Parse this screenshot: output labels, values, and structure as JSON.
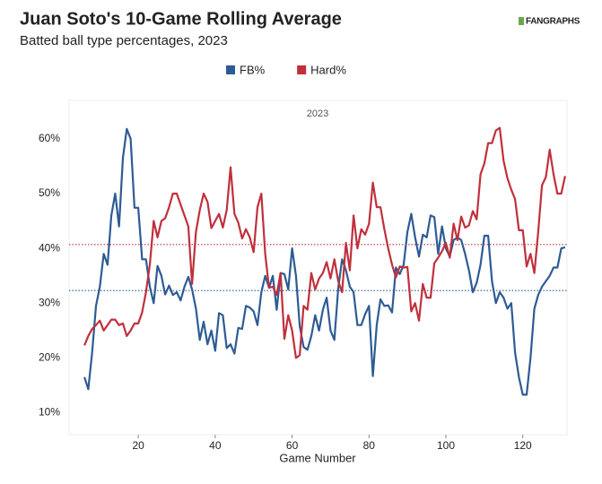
{
  "chart_data": {
    "type": "line",
    "title": "Juan Soto's 10-Game Rolling Average",
    "subtitle": "Batted ball type percentages, 2023",
    "brand": "FANGRAPHS",
    "panel_label": "2023",
    "xlabel": "Game Number",
    "x": [
      6,
      7,
      8,
      9,
      10,
      11,
      12,
      13,
      14,
      15,
      16,
      17,
      18,
      19,
      20,
      21,
      22,
      23,
      24,
      25,
      26,
      27,
      28,
      29,
      30,
      31,
      32,
      33,
      34,
      35,
      36,
      37,
      38,
      39,
      40,
      41,
      42,
      43,
      44,
      45,
      46,
      47,
      48,
      49,
      50,
      51,
      52,
      53,
      54,
      55,
      56,
      57,
      58,
      59,
      60,
      61,
      62,
      63,
      64,
      65,
      66,
      67,
      68,
      69,
      70,
      71,
      72,
      73,
      74,
      75,
      76,
      77,
      78,
      79,
      80,
      81,
      82,
      83,
      84,
      85,
      86,
      87,
      88,
      89,
      90,
      91,
      92,
      93,
      94,
      95,
      96,
      97,
      98,
      99,
      100,
      101,
      102,
      103,
      104,
      105,
      106,
      107,
      108,
      109,
      110,
      111,
      112,
      113,
      114,
      115,
      116,
      117,
      118,
      119,
      120,
      121,
      122,
      123,
      124,
      125,
      126,
      127,
      128,
      129,
      130,
      131
    ],
    "series": [
      {
        "name": "FB%",
        "color": "#2e5b94",
        "values": [
          16.5,
          14.3,
          21,
          29.5,
          33,
          39,
          37,
          46,
          50,
          44,
          56.5,
          61.8,
          60,
          47.4,
          47.4,
          38,
          38,
          33,
          30,
          36.8,
          35,
          31.6,
          33.2,
          31.5,
          32,
          30.5,
          33,
          34.8,
          32.5,
          29,
          23.3,
          26.6,
          22.5,
          25,
          21.3,
          28.2,
          27.8,
          21.8,
          22.5,
          20.8,
          25.5,
          25.3,
          29.5,
          29.2,
          28.5,
          26,
          32,
          35,
          32.8,
          35,
          28.8,
          35.5,
          35.3,
          32.5,
          40,
          35,
          25.8,
          22,
          21.5,
          24,
          27.8,
          25,
          28.8,
          31,
          25,
          23.3,
          32.7,
          38,
          36,
          33,
          32,
          26,
          26,
          28,
          29.5,
          16.7,
          26,
          30.7,
          29.5,
          29.6,
          28.3,
          36.5,
          35.3,
          37,
          43,
          46.3,
          42,
          38.5,
          42.5,
          42,
          46,
          45.7,
          39,
          44,
          40,
          38.5,
          41.5,
          42,
          41.5,
          39,
          36,
          32,
          33.7,
          37,
          42.3,
          42.3,
          34,
          30,
          32,
          31,
          29,
          30,
          21,
          16.5,
          13.3,
          13.3,
          20,
          29,
          31.5,
          33,
          34,
          35,
          36.5,
          36.5,
          40,
          40.2
        ]
      },
      {
        "name": "Hard%",
        "color": "#c0303c",
        "values": [
          22.3,
          24,
          25.3,
          26,
          26.8,
          25,
          26,
          27,
          27,
          26,
          26.3,
          24,
          25,
          26.3,
          26.3,
          28.3,
          32,
          37,
          45,
          42,
          45,
          45.5,
          47.5,
          50,
          50,
          48,
          46,
          44,
          33.5,
          43,
          47,
          50,
          48.5,
          43.7,
          45,
          46.3,
          43.8,
          47,
          54.8,
          46.3,
          44.7,
          41.8,
          43.5,
          42,
          39.3,
          47.5,
          50,
          39,
          32.8,
          33,
          31.5,
          35.5,
          23.5,
          27.8,
          25,
          20,
          20.5,
          29.5,
          28.8,
          35.5,
          32.5,
          34.5,
          35.5,
          37.5,
          34.5,
          38,
          34,
          32,
          41,
          36,
          46,
          40,
          43.5,
          42.5,
          44.5,
          52,
          47.5,
          47.5,
          43.5,
          40,
          37,
          34.7,
          36.7,
          36.5,
          36.6,
          28.5,
          30,
          26.8,
          33.5,
          31,
          31,
          37.3,
          38.3,
          39.5,
          41,
          38.3,
          44.5,
          41.5,
          45.8,
          43.8,
          44.2,
          46.8,
          45.3,
          53.5,
          55.5,
          59.2,
          59.2,
          61.5,
          62,
          56,
          52.8,
          50.7,
          49,
          43.3,
          43.3,
          36.7,
          39,
          35.5,
          43,
          51.5,
          53,
          58,
          53.5,
          50,
          50,
          53.2
        ]
      }
    ],
    "hlines": [
      {
        "value": 32.3,
        "color": "#2e5b94"
      },
      {
        "value": 40.7,
        "color": "#c0303c"
      }
    ],
    "xlim": [
      2,
      131.5
    ],
    "xticks": [
      20,
      40,
      60,
      80,
      100,
      120
    ],
    "ylim": [
      6,
      67
    ],
    "yticks": [
      {
        "value": 10,
        "label": "10%"
      },
      {
        "value": 20,
        "label": "20%"
      },
      {
        "value": 30,
        "label": "30%"
      },
      {
        "value": 40,
        "label": "40%"
      },
      {
        "value": 50,
        "label": "50%"
      },
      {
        "value": 60,
        "label": "60%"
      }
    ],
    "legend": "top"
  }
}
